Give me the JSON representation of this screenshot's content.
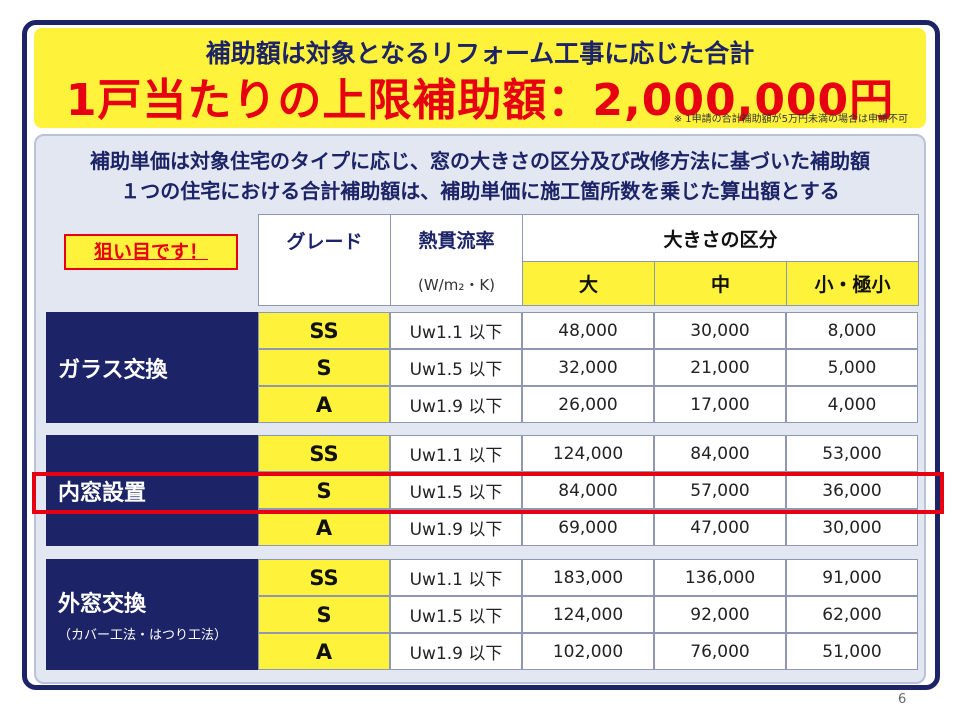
{
  "banner": {
    "line1": "補助額は対象となるリフォーム工事に応じた合計",
    "line2": "1戸当たりの上限補助額：2,000,000円",
    "note": "※ 1申請の合計補助額が5万円未満の場合は申請不可"
  },
  "intro": {
    "line1": "補助単価は対象住宅のタイプに応じ、窓の大きさの区分及び改修方法に基づいた補助額",
    "line2": "１つの住宅における合計補助額は、補助単価に施工箇所数を乗じた算出額とする"
  },
  "target_tag": "狙い目です！",
  "table": {
    "headers": {
      "grade": "グレード",
      "heat": "熱貫流率",
      "unit": "(W/m₂・K)",
      "size": "大きさの区分",
      "large": "大",
      "medium": "中",
      "small": "小・極小"
    },
    "groups": [
      {
        "label": "ガラス交換",
        "sub": "",
        "rows": [
          {
            "grade": "SS",
            "uw": "Uw1.1 以下",
            "large": "48,000",
            "medium": "30,000",
            "small": "8,000"
          },
          {
            "grade": "S",
            "uw": "Uw1.5 以下",
            "large": "32,000",
            "medium": "21,000",
            "small": "5,000"
          },
          {
            "grade": "A",
            "uw": "Uw1.9 以下",
            "large": "26,000",
            "medium": "17,000",
            "small": "4,000"
          }
        ]
      },
      {
        "label": "内窓設置",
        "sub": "",
        "rows": [
          {
            "grade": "SS",
            "uw": "Uw1.1 以下",
            "large": "124,000",
            "medium": "84,000",
            "small": "53,000"
          },
          {
            "grade": "S",
            "uw": "Uw1.5 以下",
            "large": "84,000",
            "medium": "57,000",
            "small": "36,000"
          },
          {
            "grade": "A",
            "uw": "Uw1.9 以下",
            "large": "69,000",
            "medium": "47,000",
            "small": "30,000"
          }
        ]
      },
      {
        "label": "外窓交換",
        "sub": "（カバー工法・はつり工法）",
        "rows": [
          {
            "grade": "SS",
            "uw": "Uw1.1 以下",
            "large": "183,000",
            "medium": "136,000",
            "small": "91,000"
          },
          {
            "grade": "S",
            "uw": "Uw1.5 以下",
            "large": "124,000",
            "medium": "92,000",
            "small": "62,000"
          },
          {
            "grade": "A",
            "uw": "Uw1.9 以下",
            "large": "102,000",
            "medium": "76,000",
            "small": "51,000"
          }
        ]
      }
    ]
  },
  "page_number": "6",
  "colors": {
    "navy": "#1c2366",
    "yellow": "#fff23a",
    "red": "#e60012"
  }
}
